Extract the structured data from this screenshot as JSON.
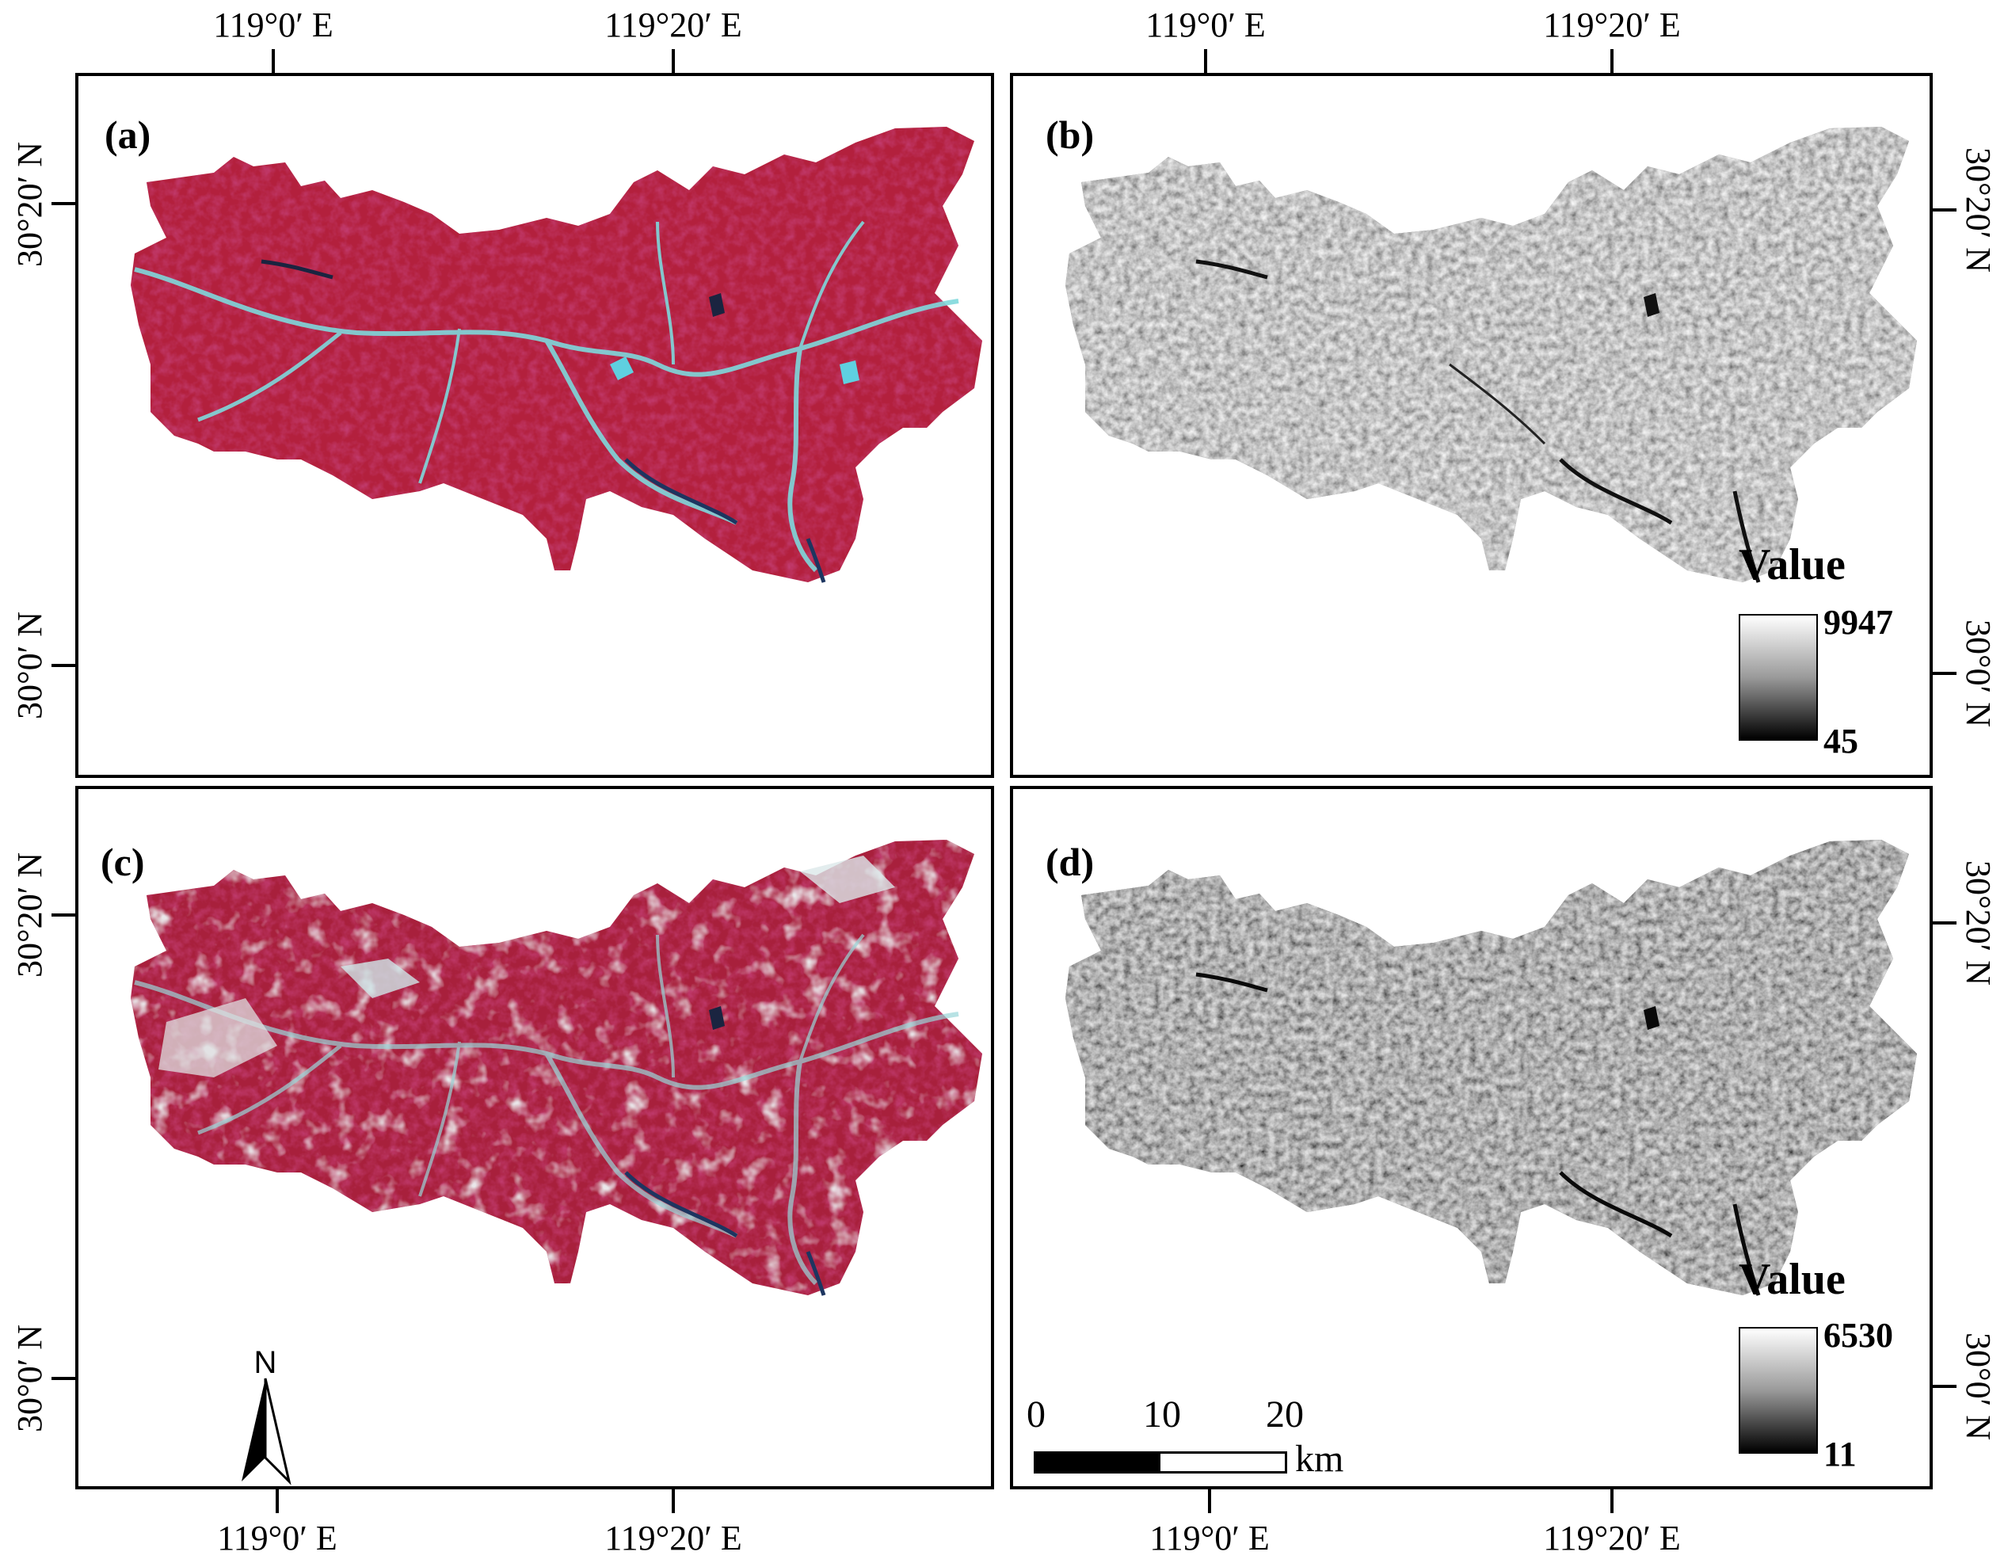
{
  "coord_labels": {
    "lon_119_0": "119°0′ E",
    "lon_119_20": "119°20′ E",
    "lat_30_20": "30°20′ N",
    "lat_30_0": "30°0′ N"
  },
  "panels": [
    {
      "id": "a",
      "label": "(a)",
      "style": "false-color"
    },
    {
      "id": "b",
      "label": "(b)",
      "style": "grayscale",
      "legend": {
        "title": "Value",
        "max": "9947",
        "min": "45"
      }
    },
    {
      "id": "c",
      "label": "(c)",
      "style": "false-color"
    },
    {
      "id": "d",
      "label": "(d)",
      "style": "grayscale",
      "legend": {
        "title": "Value",
        "max": "6530",
        "min": "11"
      }
    }
  ],
  "scalebar": {
    "ticks": [
      "0",
      "10",
      "20"
    ],
    "unit": "km"
  },
  "north_arrow": {
    "letter": "N"
  },
  "colors": {
    "vegetation": "#b3233f",
    "water": "#6fd3d8",
    "river_dark": "#1a2f5a"
  }
}
